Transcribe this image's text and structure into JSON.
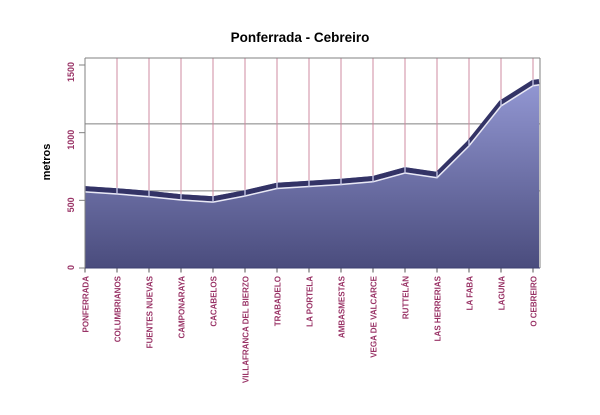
{
  "title": "Ponferrada - Cebreiro",
  "chart_data": {
    "type": "area",
    "title": "Ponferrada - Cebreiro",
    "ylabel": "metros",
    "xlabel": "",
    "ylim": [
      0,
      1500
    ],
    "y_ticks": [
      0,
      500,
      1000,
      1500
    ],
    "legend_position": "none",
    "grid": {
      "vertical_category_lines": true,
      "horizontal_reference_elevations": [
        570,
        1065
      ]
    },
    "categories": [
      "PONFERRADA",
      "COLUMBRIANOS",
      "FUENTES NUEVAS",
      "CAMPONARAYA",
      "CACABELOS",
      "VILLAFRANCA DEL BIERZO",
      "TRABADELO",
      "LA PORTELA",
      "AMBASMESTAS",
      "VEGA DE VALCARCE",
      "RUTTELÁN",
      "LAS HERRERIAS",
      "LA FABA",
      "LAGUNA",
      "O CEBREIRO"
    ],
    "values": [
      605,
      590,
      570,
      545,
      530,
      575,
      630,
      645,
      660,
      680,
      745,
      710,
      945,
      1240,
      1390
    ],
    "units": "metros",
    "colors": {
      "label": "#993366",
      "category_gridline": "#cf8ba0",
      "value_gridline": "#808080",
      "axis": "#808080",
      "x_axis_edge": "#3e4070",
      "tick": "#555555",
      "area_gradient_top": "#9ca1de",
      "area_gradient_bottom": "#4a4c7d",
      "series_band": "#333366",
      "series_band_highlight": "#e9e9f5",
      "vertex_notch": "#c9cae8",
      "title_color": "#000000"
    }
  }
}
